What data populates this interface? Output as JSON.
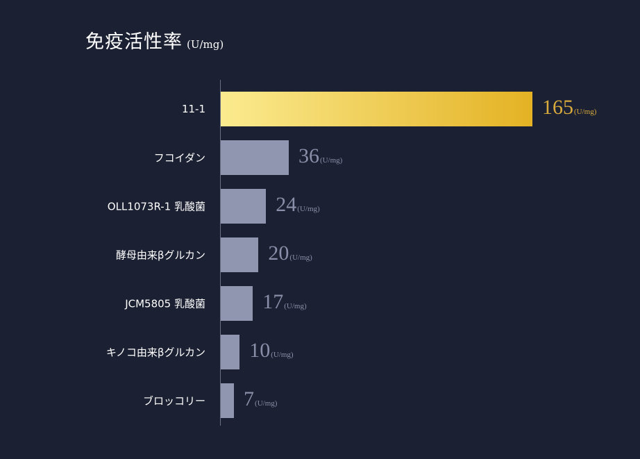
{
  "chart_data": {
    "type": "bar",
    "orientation": "horizontal",
    "title": "免疫活性率",
    "unit": "(U/mg)",
    "categories": [
      "11-1",
      "フコイダン",
      "OLL1073R-1 乳酸菌",
      "酵母由来βグルカン",
      "JCM5805 乳酸菌",
      "キノコ由来βグルカン",
      "ブロッコリー"
    ],
    "values": [
      165,
      36,
      24,
      20,
      17,
      10,
      7
    ],
    "value_unit": "(U/mg)",
    "grid": false,
    "highlight_index": 0,
    "colors": {
      "background": "#1b2032",
      "bar": "#9095b0",
      "highlight_start": "#fbeb8f",
      "highlight_end": "#e4b224",
      "highlight_text": "#d9aa3c",
      "value_text": "#8a8fa9"
    }
  }
}
